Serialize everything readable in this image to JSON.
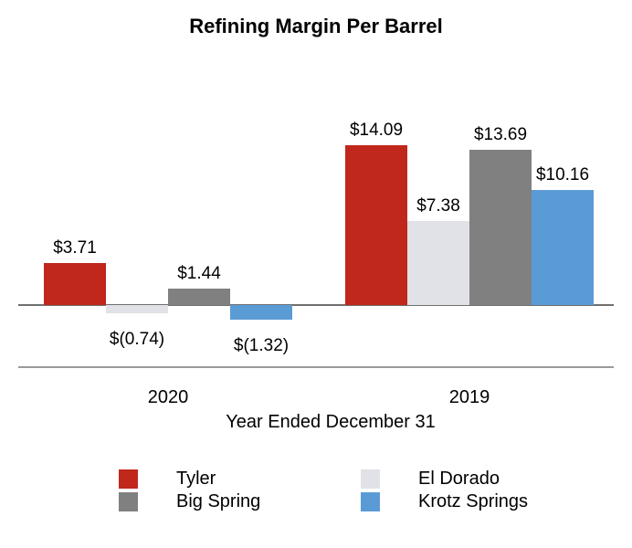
{
  "chart_data": {
    "type": "bar",
    "title": "Refining Margin Per Barrel",
    "xlabel": "Year Ended December 31",
    "ylabel": "",
    "categories": [
      "2020",
      "2019"
    ],
    "series": [
      {
        "name": "Tyler",
        "color": "#c0281c",
        "values": [
          3.71,
          14.09
        ],
        "data_labels": [
          "$3.71",
          "$14.09"
        ]
      },
      {
        "name": "El Dorado",
        "color": "#e0e2e7",
        "values": [
          -0.74,
          7.38
        ],
        "data_labels": [
          "$(0.74)",
          "$7.38"
        ]
      },
      {
        "name": "Big Spring",
        "color": "#808080",
        "values": [
          1.44,
          13.69
        ],
        "data_labels": [
          "$1.44",
          "$13.69"
        ]
      },
      {
        "name": "Krotz Springs",
        "color": "#5b9bd5",
        "values": [
          -1.32,
          10.16
        ],
        "data_labels": [
          "$(1.32)",
          "$10.16"
        ]
      }
    ],
    "ylim": [
      -2.5,
      16
    ],
    "grid": false,
    "legend_position": "bottom",
    "legend_columns": 2,
    "value_label_color": "#000000",
    "zero_axis_line_color": "#6f6f6f",
    "separator_line_color": "#9b9b9b"
  }
}
